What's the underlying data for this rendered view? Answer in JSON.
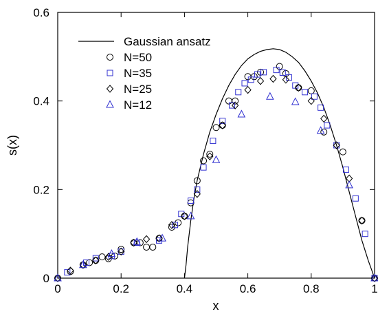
{
  "chart_data": {
    "type": "scatter",
    "xlabel": "x",
    "ylabel": "s(x)",
    "xlim": [
      0,
      1
    ],
    "ylim": [
      0,
      0.6
    ],
    "xticks": [
      0,
      0.2,
      0.4,
      0.6,
      0.8,
      1
    ],
    "xtick_labels": [
      "0",
      "0.2",
      "0.4",
      "0.6",
      "0.8",
      "1"
    ],
    "yticks": [
      0,
      0.2,
      0.4,
      0.6
    ],
    "ytick_labels": [
      "0",
      "0.2",
      "0.4",
      "0.6"
    ],
    "grid": false,
    "legend_position": "top-left",
    "line": {
      "name": "Gaussian ansatz",
      "color": "#000000",
      "x": [
        0.4,
        0.405,
        0.41,
        0.42,
        0.43,
        0.44,
        0.46,
        0.48,
        0.5,
        0.52,
        0.54,
        0.56,
        0.58,
        0.6,
        0.62,
        0.64,
        0.66,
        0.68,
        0.7,
        0.72,
        0.74,
        0.76,
        0.78,
        0.8,
        0.82,
        0.84,
        0.86,
        0.88,
        0.9,
        0.92,
        0.94,
        0.96,
        0.98,
        0.99,
        0.995,
        1.0
      ],
      "y": [
        0.0,
        0.03,
        0.07,
        0.13,
        0.18,
        0.22,
        0.28,
        0.33,
        0.37,
        0.405,
        0.435,
        0.46,
        0.48,
        0.495,
        0.505,
        0.512,
        0.516,
        0.518,
        0.516,
        0.51,
        0.5,
        0.487,
        0.468,
        0.445,
        0.418,
        0.385,
        0.345,
        0.3,
        0.25,
        0.195,
        0.14,
        0.085,
        0.04,
        0.02,
        0.01,
        0.0
      ]
    },
    "series": [
      {
        "name": "N=50",
        "marker": "circle",
        "color": "#000000",
        "x": [
          0.0,
          0.04,
          0.08,
          0.1,
          0.12,
          0.14,
          0.16,
          0.18,
          0.2,
          0.24,
          0.26,
          0.28,
          0.3,
          0.32,
          0.36,
          0.38,
          0.4,
          0.42,
          0.44,
          0.46,
          0.48,
          0.5,
          0.52,
          0.54,
          0.56,
          0.6,
          0.62,
          0.64,
          0.7,
          0.72,
          0.76,
          0.8,
          0.84,
          0.9,
          0.96,
          1.0
        ],
        "y": [
          0.0,
          0.015,
          0.03,
          0.035,
          0.04,
          0.048,
          0.044,
          0.05,
          0.065,
          0.08,
          0.08,
          0.07,
          0.07,
          0.09,
          0.115,
          0.125,
          0.14,
          0.17,
          0.22,
          0.265,
          0.28,
          0.34,
          0.345,
          0.4,
          0.4,
          0.455,
          0.455,
          0.465,
          0.478,
          0.462,
          0.43,
          0.423,
          0.33,
          0.285,
          0.13,
          0.0
        ]
      },
      {
        "name": "N=35",
        "marker": "square",
        "color": "#3030d0",
        "x": [
          0.03,
          0.09,
          0.12,
          0.17,
          0.2,
          0.25,
          0.32,
          0.37,
          0.39,
          0.42,
          0.44,
          0.46,
          0.49,
          0.52,
          0.55,
          0.57,
          0.59,
          0.61,
          0.63,
          0.65,
          0.69,
          0.71,
          0.73,
          0.75,
          0.78,
          0.81,
          0.83,
          0.85,
          0.88,
          0.91,
          0.94,
          0.97,
          1.0
        ],
        "y": [
          0.013,
          0.035,
          0.045,
          0.05,
          0.06,
          0.08,
          0.085,
          0.12,
          0.145,
          0.175,
          0.2,
          0.25,
          0.31,
          0.355,
          0.39,
          0.42,
          0.44,
          0.448,
          0.46,
          0.465,
          0.47,
          0.464,
          0.453,
          0.435,
          0.42,
          0.41,
          0.385,
          0.345,
          0.3,
          0.245,
          0.18,
          0.1,
          0.0
        ]
      },
      {
        "name": "N=25",
        "marker": "diamond",
        "color": "#000000",
        "x": [
          0.0,
          0.04,
          0.08,
          0.12,
          0.16,
          0.2,
          0.24,
          0.28,
          0.32,
          0.36,
          0.4,
          0.44,
          0.48,
          0.52,
          0.56,
          0.6,
          0.64,
          0.68,
          0.72,
          0.76,
          0.8,
          0.84,
          0.88,
          0.92,
          0.96,
          1.0
        ],
        "y": [
          0.0,
          0.017,
          0.03,
          0.04,
          0.048,
          0.06,
          0.08,
          0.088,
          0.09,
          0.12,
          0.14,
          0.19,
          0.275,
          0.345,
          0.39,
          0.425,
          0.445,
          0.45,
          0.448,
          0.43,
          0.4,
          0.36,
          0.3,
          0.225,
          0.13,
          0.0
        ]
      },
      {
        "name": "N=12",
        "marker": "triangle",
        "color": "#3030d0",
        "x": [
          0.0,
          0.08,
          0.17,
          0.25,
          0.33,
          0.42,
          0.5,
          0.58,
          0.67,
          0.75,
          0.83,
          0.92,
          1.0
        ],
        "y": [
          0.0,
          0.03,
          0.055,
          0.082,
          0.09,
          0.14,
          0.267,
          0.37,
          0.41,
          0.398,
          0.333,
          0.21,
          0.0
        ]
      }
    ]
  }
}
